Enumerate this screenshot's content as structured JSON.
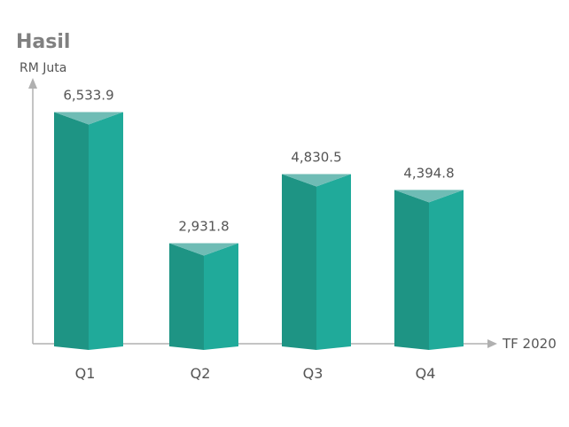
{
  "chart_data": {
    "type": "bar",
    "title": "Hasil",
    "ylabel": "RM Juta",
    "xlabel": "TF 2020",
    "categories": [
      "Q1",
      "Q2",
      "Q3",
      "Q4"
    ],
    "values": [
      6533.9,
      2931.8,
      4830.5,
      4394.8
    ],
    "value_labels": [
      "6,533.9",
      "2,931.8",
      "4,830.5",
      "4,394.8"
    ],
    "ylim": [
      0,
      7300
    ],
    "grid": false,
    "legend": "none",
    "colors": {
      "front_left": "#1e9484",
      "front_right": "#20aa9a",
      "top": "#6fbcb5",
      "axis": "#b0b0b0"
    }
  }
}
